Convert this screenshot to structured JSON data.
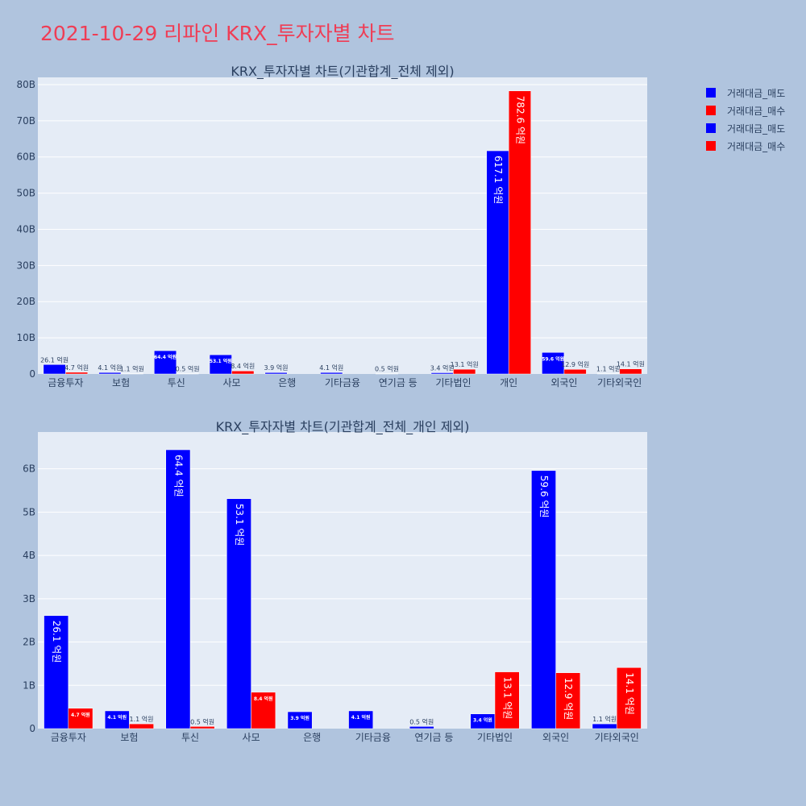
{
  "page": {
    "title": "2021-10-29 리파인 KRX_투자자별 차트"
  },
  "legend": [
    {
      "label": "거래대금_매도",
      "color": "#0000ff"
    },
    {
      "label": "거래대금_매수",
      "color": "#ff0000"
    },
    {
      "label": "거래대금_매도",
      "color": "#0000ff"
    },
    {
      "label": "거래대금_매수",
      "color": "#ff0000"
    }
  ],
  "colors": {
    "sell": "#0000ff",
    "buy": "#ff0000",
    "plot_bg": "#e5ecf6",
    "grid": "#ffffff",
    "text": "#2a3f5f",
    "page_bg": "#b0c4de",
    "title": "#ef3d55"
  },
  "chart_data": [
    {
      "type": "bar",
      "title": "KRX_투자자별 차트(기관합계_전체 제외)",
      "categories": [
        "금융투자",
        "보험",
        "투신",
        "사모",
        "은행",
        "기타금융",
        "연기금 등",
        "기타법인",
        "개인",
        "외국인",
        "기타외국인"
      ],
      "yticks": [
        "0",
        "10B",
        "20B",
        "30B",
        "40B",
        "50B",
        "60B",
        "70B",
        "80B"
      ],
      "ylim": [
        0,
        82
      ],
      "unit": "B",
      "series": [
        {
          "name": "거래대금_매도",
          "values": [
            2.61,
            0.41,
            6.44,
            5.31,
            0.39,
            0.41,
            0.05,
            0.34,
            61.71,
            5.96,
            0.11
          ],
          "labels": [
            "26.1 억원",
            "4.1 억원",
            "64.4 억원",
            "53.1 억원",
            "3.9 억원",
            "4.1 억원",
            "0.5 억원",
            "3.4 억원",
            "617.1 억원",
            "59.6 억원",
            "1.1 억원"
          ]
        },
        {
          "name": "거래대금_매수",
          "values": [
            0.47,
            0.11,
            0.05,
            0.84,
            null,
            null,
            null,
            1.31,
            78.26,
            1.29,
            1.41
          ],
          "labels": [
            "4.7 억원",
            "1.1 억원",
            "0.5 억원",
            "8.4 억원",
            "",
            "",
            "",
            "13.1 억원",
            "782.6 억원",
            "12.9 억원",
            "14.1 억원"
          ]
        }
      ]
    },
    {
      "type": "bar",
      "title": "KRX_투자자별 차트(기관합계_전체_개인 제외)",
      "categories": [
        "금융투자",
        "보험",
        "투신",
        "사모",
        "은행",
        "기타금융",
        "연기금 등",
        "기타법인",
        "외국인",
        "기타외국인"
      ],
      "yticks": [
        "0",
        "1B",
        "2B",
        "3B",
        "4B",
        "5B",
        "6B"
      ],
      "ylim": [
        0,
        6.85
      ],
      "unit": "B",
      "series": [
        {
          "name": "거래대금_매도",
          "values": [
            2.61,
            0.41,
            6.44,
            5.31,
            0.39,
            0.41,
            0.05,
            0.34,
            5.96,
            0.11
          ],
          "labels": [
            "26.1 억원",
            "4.1 억원",
            "64.4 억원",
            "53.1 억원",
            "3.9 억원",
            "4.1 억원",
            "0.5 억원",
            "3.4 억원",
            "59.6 억원",
            "1.1 억원"
          ]
        },
        {
          "name": "거래대금_매수",
          "values": [
            0.47,
            0.11,
            0.05,
            0.84,
            null,
            null,
            null,
            1.31,
            1.29,
            1.41
          ],
          "labels": [
            "4.7 억원",
            "1.1 억원",
            "0.5 억원",
            "8.4 억원",
            "",
            "",
            "",
            "13.1 억원",
            "12.9 억원",
            "14.1 억원"
          ]
        }
      ]
    }
  ]
}
